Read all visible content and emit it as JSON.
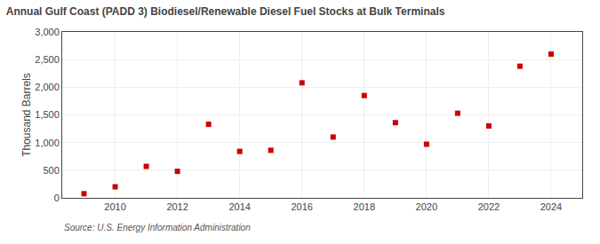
{
  "chart_data": {
    "type": "scatter",
    "title": "Annual Gulf Coast (PADD 3) Biodiesel/Renewable Diesel Fuel Stocks at Bulk Terminals",
    "y_label": "Thousand Barrels",
    "annotations": [
      "Source: U.S. Energy Information Administration"
    ],
    "x": [
      2009,
      2010,
      2011,
      2012,
      2013,
      2014,
      2015,
      2016,
      2017,
      2018,
      2019,
      2020,
      2021,
      2022,
      2023,
      2024
    ],
    "values": [
      75,
      200,
      570,
      480,
      1330,
      840,
      860,
      2080,
      1100,
      1850,
      1360,
      970,
      1530,
      1300,
      2380,
      2600
    ],
    "color": "#cc0000",
    "marker": "square",
    "xlim": [
      2008.3,
      2025.0
    ],
    "xticks": [
      2010,
      2012,
      2014,
      2016,
      2018,
      2020,
      2022,
      2024
    ],
    "ylim": [
      0,
      3000
    ],
    "yticks": [
      0,
      500,
      {
        "value": 1000,
        "label": "1,000"
      },
      {
        "value": 1500,
        "label": "1,500"
      },
      {
        "value": 2000,
        "label": "2,000"
      },
      {
        "value": 2500,
        "label": "2,500"
      },
      {
        "value": 3000,
        "label": "3,000"
      }
    ],
    "grid": true
  }
}
